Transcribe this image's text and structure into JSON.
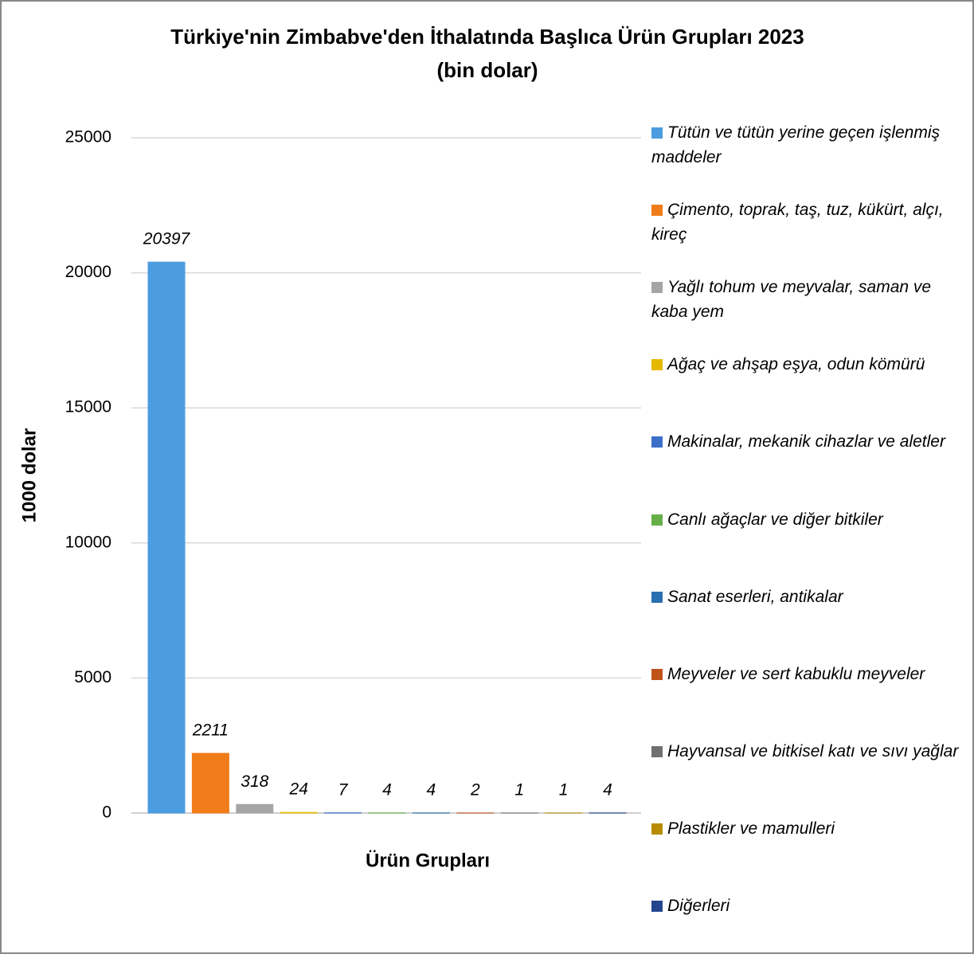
{
  "chart_data": {
    "type": "bar",
    "title": "Türkiye'nin Zimbabve'den İthalatında Başlıca Ürün Grupları 2023",
    "subtitle": "(bin dolar)",
    "y_label": "1000 dolar",
    "x_label": "Ürün Grupları",
    "ylim": [
      0,
      25000
    ],
    "yticks": [
      0,
      5000,
      10000,
      15000,
      20000,
      25000
    ],
    "grid": true,
    "legend": "right",
    "series": [
      {
        "name": "Tütün ve tütün yerine geçen işlenmiş maddeler",
        "color": "#4b9de0",
        "values": [
          20397
        ]
      },
      {
        "name": "Çimento, toprak, taş, tuz, kükürt, alçı, kireç",
        "color": "#f07d1a",
        "values": [
          2211
        ]
      },
      {
        "name": "Yağlı tohum ve meyvalar, saman ve kaba yem",
        "color": "#a5a5a5",
        "values": [
          318
        ]
      },
      {
        "name": "Ağaç ve ahşap eşya, odun kömürü",
        "color": "#e6b800",
        "values": [
          24
        ]
      },
      {
        "name": "Makinalar, mekanik cihazlar ve aletler",
        "color": "#3c6fc8",
        "values": [
          7
        ]
      },
      {
        "name": "Canlı ağaçlar ve diğer bitkiler",
        "color": "#66b04a",
        "values": [
          4
        ]
      },
      {
        "name": "Sanat eserleri, antikalar",
        "color": "#2a70b0",
        "values": [
          4
        ]
      },
      {
        "name": "Meyveler ve sert kabuklu meyveler",
        "color": "#c0531a",
        "values": [
          2
        ]
      },
      {
        "name": "Hayvansal ve bitkisel katı ve sıvı yağlar",
        "color": "#707070",
        "values": [
          1
        ]
      },
      {
        "name": "Plastikler ve mamulleri",
        "color": "#b88c00",
        "values": [
          1
        ]
      },
      {
        "name": "Diğerleri",
        "color": "#25468f",
        "values": [
          4
        ]
      }
    ]
  }
}
